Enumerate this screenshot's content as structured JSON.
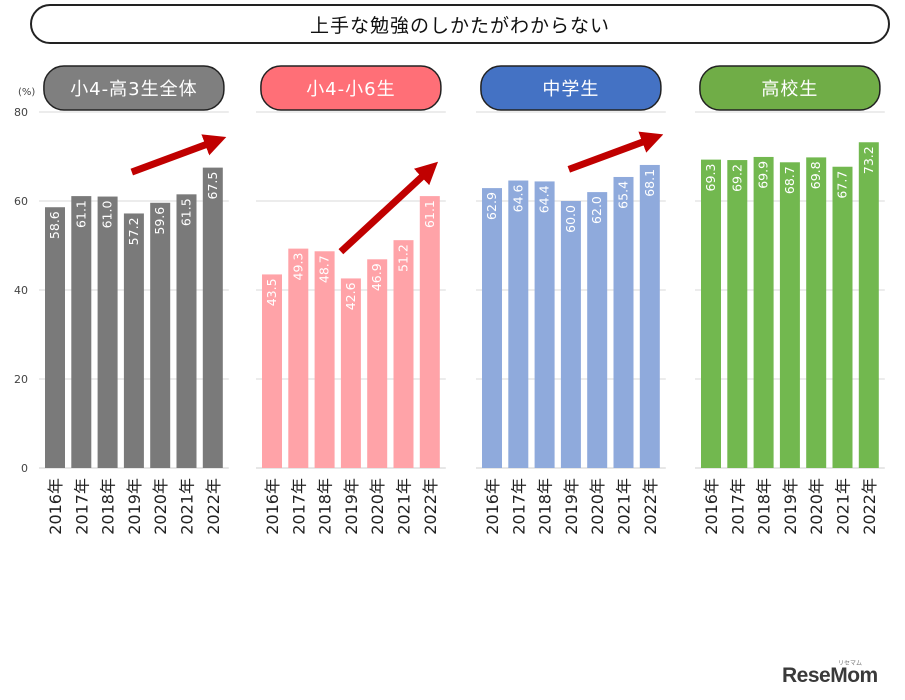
{
  "title": "上手な勉強のしかたがわからない",
  "logo": "ReseMom",
  "logo_small": "リセマム",
  "chart_data": {
    "type": "bar",
    "yunit": "(%)",
    "ylim": [
      0,
      80
    ],
    "yticks": [
      0,
      20,
      40,
      60,
      80
    ],
    "categories": [
      "2016年",
      "2017年",
      "2018年",
      "2019年",
      "2020年",
      "2021年",
      "2022年"
    ],
    "panels": [
      {
        "label": "小4-高3生全体",
        "header_color": "#7f7f7f",
        "bar_color": "#7a7a7a",
        "values": [
          58.6,
          61.1,
          61.0,
          57.2,
          59.6,
          61.5,
          67.5
        ],
        "trend_arrow": true
      },
      {
        "label": "小4-小6生",
        "header_color": "#ff6f77",
        "bar_color": "#ffa3a8",
        "values": [
          43.5,
          49.3,
          48.7,
          42.6,
          46.9,
          51.2,
          61.1
        ],
        "trend_arrow": true
      },
      {
        "label": "中学生",
        "header_color": "#4472c4",
        "bar_color": "#8faadc",
        "values": [
          62.9,
          64.6,
          64.4,
          60.0,
          62.0,
          65.4,
          68.1
        ],
        "trend_arrow": true
      },
      {
        "label": "高校生",
        "header_color": "#70ad47",
        "bar_color": "#72b84f",
        "values": [
          69.3,
          69.2,
          69.9,
          68.7,
          69.8,
          67.7,
          73.2
        ],
        "trend_arrow": false
      }
    ]
  }
}
